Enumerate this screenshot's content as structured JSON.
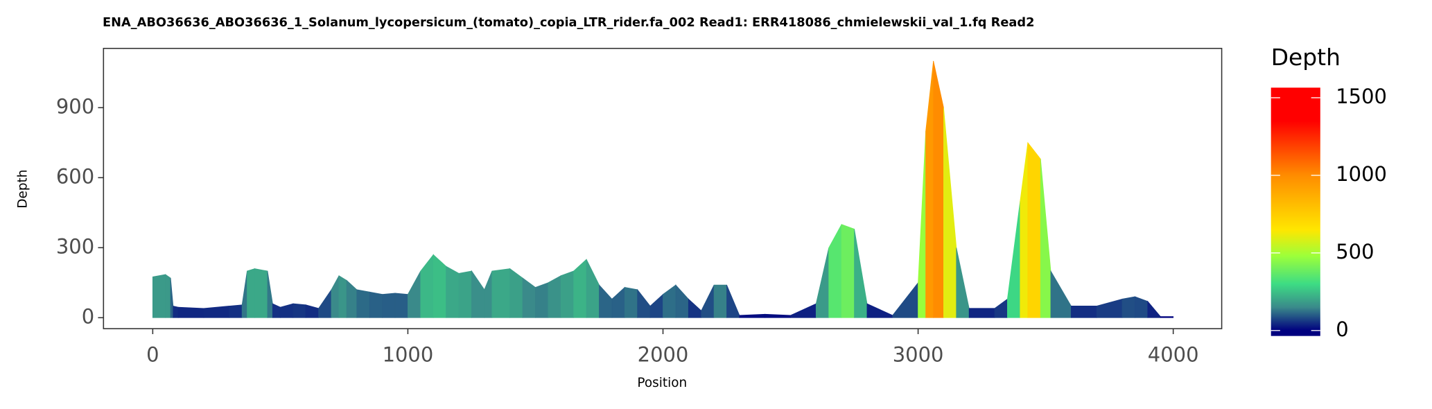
{
  "chart_data": {
    "type": "area",
    "title": "ENA_ABO36636_ABO36636_1_Solanum_lycopersicum_(tomato)_copia_LTR_rider.fa_002   Read1: ERR418086_chmielewskii_val_1.fq   Read2",
    "x_label": "Position",
    "y_label": "Depth",
    "legend_title": "Depth",
    "x": [
      0,
      50,
      70,
      80,
      100,
      200,
      300,
      350,
      370,
      400,
      450,
      470,
      500,
      550,
      600,
      650,
      700,
      730,
      760,
      800,
      850,
      900,
      950,
      1000,
      1050,
      1100,
      1150,
      1200,
      1250,
      1300,
      1330,
      1400,
      1450,
      1500,
      1550,
      1600,
      1650,
      1700,
      1750,
      1800,
      1850,
      1900,
      1950,
      2000,
      2050,
      2100,
      2150,
      2200,
      2250,
      2300,
      2400,
      2500,
      2600,
      2650,
      2700,
      2750,
      2800,
      2900,
      3000,
      3030,
      3060,
      3100,
      3150,
      3200,
      3300,
      3350,
      3400,
      3430,
      3480,
      3520,
      3600,
      3700,
      3800,
      3850,
      3900,
      3950,
      4000
    ],
    "values": [
      175,
      185,
      170,
      50,
      45,
      40,
      50,
      55,
      200,
      210,
      200,
      60,
      45,
      60,
      55,
      40,
      120,
      180,
      160,
      120,
      110,
      100,
      105,
      100,
      200,
      270,
      220,
      190,
      200,
      120,
      200,
      210,
      170,
      130,
      150,
      180,
      200,
      250,
      140,
      80,
      130,
      120,
      50,
      100,
      140,
      80,
      30,
      140,
      140,
      10,
      15,
      10,
      60,
      300,
      400,
      380,
      60,
      10,
      150,
      800,
      1100,
      900,
      300,
      40,
      40,
      80,
      500,
      750,
      680,
      200,
      50,
      50,
      80,
      90,
      70,
      5,
      5
    ],
    "xlim": [
      -193,
      4190
    ],
    "ylim": [
      -47,
      1154
    ],
    "xticks": [
      0,
      1000,
      2000,
      3000,
      4000
    ],
    "yticks": [
      0,
      300,
      600,
      900
    ],
    "colorlim": [
      -35,
      1565
    ],
    "colorticks": [
      0,
      500,
      1000,
      1500
    ],
    "colorscale": [
      {
        "value": 0,
        "color": "#00007f"
      },
      {
        "value": 150,
        "color": "#3a8a8a"
      },
      {
        "value": 300,
        "color": "#3ddc84"
      },
      {
        "value": 480,
        "color": "#9cff3a"
      },
      {
        "value": 650,
        "color": "#ffe600"
      },
      {
        "value": 1000,
        "color": "#ff8c00"
      },
      {
        "value": 1350,
        "color": "#ff0000"
      }
    ]
  }
}
